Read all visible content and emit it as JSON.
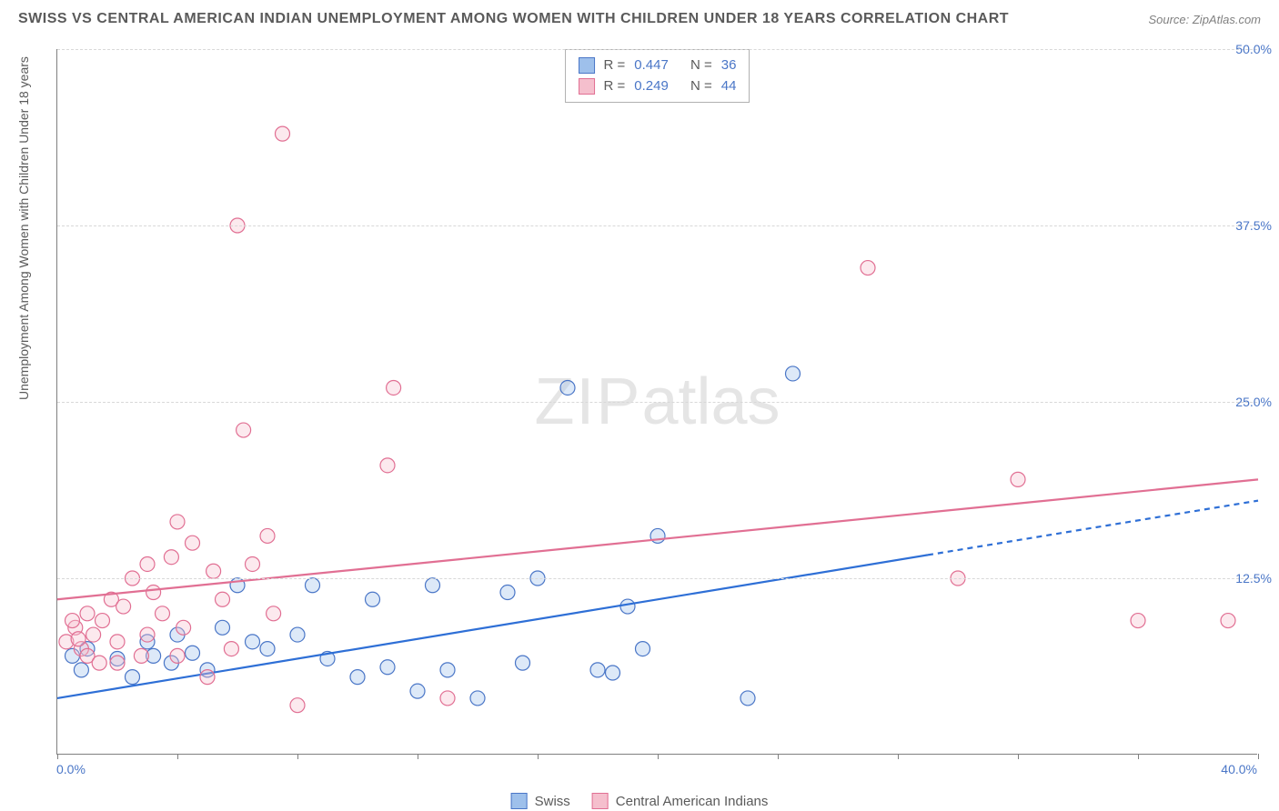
{
  "title": "SWISS VS CENTRAL AMERICAN INDIAN UNEMPLOYMENT AMONG WOMEN WITH CHILDREN UNDER 18 YEARS CORRELATION CHART",
  "source": "Source: ZipAtlas.com",
  "y_axis_label": "Unemployment Among Women with Children Under 18 years",
  "watermark_zip": "ZIP",
  "watermark_atlas": "atlas",
  "chart": {
    "type": "scatter",
    "background_color": "#ffffff",
    "grid_color": "#d8d8d8",
    "axis_color": "#808080",
    "xlim": [
      0,
      40
    ],
    "ylim": [
      0,
      50
    ],
    "x_tick_step": 4,
    "y_ticks": [
      12.5,
      25.0,
      37.5,
      50.0
    ],
    "y_tick_labels": [
      "12.5%",
      "25.0%",
      "37.5%",
      "50.0%"
    ],
    "x_start_label": "0.0%",
    "x_end_label": "40.0%",
    "marker_radius": 8,
    "marker_fill_opacity": 0.35,
    "marker_stroke_width": 1.2,
    "trend_line_width": 2.2,
    "series": [
      {
        "name": "Swiss",
        "fill_color": "#9ec0eb",
        "stroke_color": "#4a76c7",
        "line_color": "#2e6fd6",
        "trend": {
          "x1": 0,
          "y1": 4.0,
          "x2": 40,
          "y2": 18.0,
          "solid_until_x": 29,
          "dash_pattern": "6 5"
        },
        "R_label": "R =",
        "R_value": "0.447",
        "N_label": "N =",
        "N_value": "36",
        "points": [
          [
            0.5,
            7.0
          ],
          [
            0.8,
            6.0
          ],
          [
            1.0,
            7.5
          ],
          [
            2.0,
            6.8
          ],
          [
            2.5,
            5.5
          ],
          [
            3.0,
            8.0
          ],
          [
            3.2,
            7.0
          ],
          [
            3.8,
            6.5
          ],
          [
            4.0,
            8.5
          ],
          [
            4.5,
            7.2
          ],
          [
            5.0,
            6.0
          ],
          [
            5.5,
            9.0
          ],
          [
            6.0,
            12.0
          ],
          [
            6.5,
            8.0
          ],
          [
            7.0,
            7.5
          ],
          [
            8.0,
            8.5
          ],
          [
            8.5,
            12.0
          ],
          [
            9.0,
            6.8
          ],
          [
            10.0,
            5.5
          ],
          [
            10.5,
            11.0
          ],
          [
            11.0,
            6.2
          ],
          [
            12.0,
            4.5
          ],
          [
            12.5,
            12.0
          ],
          [
            13.0,
            6.0
          ],
          [
            14.0,
            4.0
          ],
          [
            15.0,
            11.5
          ],
          [
            15.5,
            6.5
          ],
          [
            16.0,
            12.5
          ],
          [
            17.0,
            26.0
          ],
          [
            18.5,
            5.8
          ],
          [
            19.0,
            10.5
          ],
          [
            19.5,
            7.5
          ],
          [
            20.0,
            15.5
          ],
          [
            23.0,
            4.0
          ],
          [
            24.5,
            27.0
          ],
          [
            18.0,
            6.0
          ]
        ]
      },
      {
        "name": "Central American Indians",
        "fill_color": "#f5bfcd",
        "stroke_color": "#e16f93",
        "line_color": "#e16f93",
        "trend": {
          "x1": 0,
          "y1": 11.0,
          "x2": 40,
          "y2": 19.5,
          "solid_until_x": 40
        },
        "R_label": "R =",
        "R_value": "0.249",
        "N_label": "N =",
        "N_value": "44",
        "points": [
          [
            0.3,
            8.0
          ],
          [
            0.6,
            9.0
          ],
          [
            0.8,
            7.5
          ],
          [
            1.0,
            10.0
          ],
          [
            1.2,
            8.5
          ],
          [
            1.5,
            9.5
          ],
          [
            1.8,
            11.0
          ],
          [
            2.0,
            8.0
          ],
          [
            2.2,
            10.5
          ],
          [
            2.5,
            12.5
          ],
          [
            2.8,
            7.0
          ],
          [
            3.0,
            13.5
          ],
          [
            3.2,
            11.5
          ],
          [
            3.5,
            10.0
          ],
          [
            3.8,
            14.0
          ],
          [
            4.0,
            16.5
          ],
          [
            4.2,
            9.0
          ],
          [
            4.5,
            15.0
          ],
          [
            5.0,
            5.5
          ],
          [
            5.2,
            13.0
          ],
          [
            5.5,
            11.0
          ],
          [
            6.0,
            37.5
          ],
          [
            6.2,
            23.0
          ],
          [
            6.5,
            13.5
          ],
          [
            7.0,
            15.5
          ],
          [
            7.2,
            10.0
          ],
          [
            7.5,
            44.0
          ],
          [
            8.0,
            3.5
          ],
          [
            11.0,
            20.5
          ],
          [
            11.2,
            26.0
          ],
          [
            13.0,
            4.0
          ],
          [
            27.0,
            34.5
          ],
          [
            30.0,
            12.5
          ],
          [
            32.0,
            19.5
          ],
          [
            36.0,
            9.5
          ],
          [
            39.0,
            9.5
          ],
          [
            1.0,
            7.0
          ],
          [
            1.4,
            6.5
          ],
          [
            2.0,
            6.5
          ],
          [
            3.0,
            8.5
          ],
          [
            4.0,
            7.0
          ],
          [
            0.5,
            9.5
          ],
          [
            0.7,
            8.2
          ],
          [
            5.8,
            7.5
          ]
        ]
      }
    ]
  },
  "legend": {
    "swiss_label": "Swiss",
    "cai_label": "Central American Indians"
  }
}
